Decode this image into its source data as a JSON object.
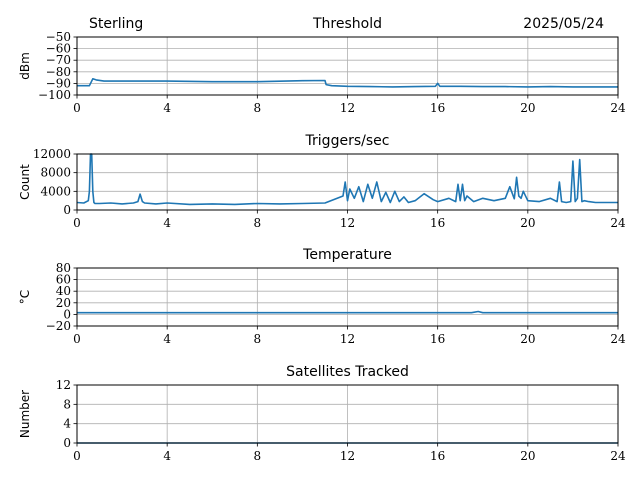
{
  "header": {
    "station": "Sterling",
    "date": "2025/05/24"
  },
  "colors": {
    "series": "#1f77b4",
    "grid": "#b0b0b0",
    "axis": "#000000"
  },
  "chart_data": [
    {
      "type": "line",
      "title": "Threshold",
      "xlabel": "",
      "ylabel": "dBm",
      "xlim": [
        0,
        24
      ],
      "ylim": [
        -100,
        -50
      ],
      "xticks": [
        0,
        4,
        8,
        12,
        16,
        20,
        24
      ],
      "yticks": [
        -100,
        -90,
        -80,
        -70,
        -60,
        -50
      ],
      "ytick_labels": [
        "−100",
        "−90",
        "−80",
        "−70",
        "−60",
        "−50"
      ],
      "grid": true,
      "series": [
        {
          "x": [
            0,
            0.55,
            0.7,
            0.85,
            1.2,
            2,
            3,
            4,
            6,
            8,
            10,
            11,
            11.05,
            11.3,
            12,
            13,
            14,
            15,
            15.9,
            16,
            16.1,
            17,
            18,
            19,
            20,
            21,
            22,
            23,
            24
          ],
          "y": [
            -92,
            -92,
            -86,
            -87,
            -88,
            -88,
            -88,
            -88,
            -88.5,
            -88.5,
            -87.7,
            -87.5,
            -91,
            -92,
            -92.5,
            -92.8,
            -93,
            -92.8,
            -92.5,
            -90,
            -92.5,
            -92.5,
            -92.8,
            -92.8,
            -93,
            -92.8,
            -93,
            -93,
            -93
          ]
        }
      ]
    },
    {
      "type": "line",
      "title": "Triggers/sec",
      "xlabel": "",
      "ylabel": "Count",
      "xlim": [
        0,
        24
      ],
      "ylim": [
        0,
        12000
      ],
      "xticks": [
        0,
        4,
        8,
        12,
        16,
        20,
        24
      ],
      "yticks": [
        0,
        4000,
        8000,
        12000
      ],
      "ytick_labels": [
        "0",
        "4000",
        "8000",
        "12000"
      ],
      "grid": true,
      "series": [
        {
          "x": [
            0,
            0.3,
            0.5,
            0.55,
            0.6,
            0.65,
            0.7,
            0.75,
            0.8,
            1.0,
            1.5,
            2.0,
            2.5,
            2.7,
            2.8,
            2.9,
            3.0,
            3.5,
            4.0,
            5.0,
            6.0,
            7.0,
            8.0,
            9.0,
            10.0,
            11.0,
            11.8,
            11.9,
            12.0,
            12.1,
            12.3,
            12.5,
            12.7,
            12.9,
            13.1,
            13.3,
            13.5,
            13.7,
            13.9,
            14.1,
            14.3,
            14.5,
            14.7,
            15.0,
            15.4,
            15.8,
            16.0,
            16.5,
            16.8,
            16.9,
            17.0,
            17.1,
            17.2,
            17.3,
            17.6,
            18.0,
            18.5,
            19.0,
            19.2,
            19.4,
            19.5,
            19.6,
            19.7,
            19.8,
            20.0,
            20.5,
            21.0,
            21.3,
            21.4,
            21.5,
            21.7,
            21.9,
            22.0,
            22.1,
            22.2,
            22.3,
            22.4,
            22.5,
            22.7,
            23.0,
            23.5,
            24.0
          ],
          "y": [
            1600,
            1500,
            2000,
            4000,
            12000,
            12000,
            4000,
            1600,
            1400,
            1400,
            1500,
            1300,
            1500,
            1800,
            3400,
            1800,
            1500,
            1300,
            1500,
            1200,
            1300,
            1200,
            1400,
            1300,
            1400,
            1500,
            3000,
            6000,
            2000,
            4500,
            2500,
            5000,
            1800,
            5500,
            2500,
            6000,
            1800,
            3800,
            1600,
            4000,
            1800,
            2800,
            1600,
            2000,
            3500,
            2200,
            1800,
            2500,
            1800,
            5500,
            2000,
            5500,
            2000,
            3000,
            1800,
            2500,
            2000,
            2500,
            5000,
            2400,
            7000,
            3000,
            2500,
            4000,
            2000,
            1800,
            2500,
            1800,
            6000,
            1800,
            1600,
            1800,
            10500,
            1800,
            2500,
            10800,
            1800,
            2000,
            1800,
            1600,
            1600,
            1600
          ]
        }
      ]
    },
    {
      "type": "line",
      "title": "Temperature",
      "xlabel": "",
      "ylabel": "°C",
      "xlim": [
        0,
        24
      ],
      "ylim": [
        -20,
        80
      ],
      "xticks": [
        0,
        4,
        8,
        12,
        16,
        20,
        24
      ],
      "yticks": [
        -20,
        0,
        20,
        40,
        60,
        80
      ],
      "ytick_labels": [
        "−20",
        "0",
        "20",
        "40",
        "60",
        "80"
      ],
      "grid": true,
      "series": [
        {
          "x": [
            0,
            4,
            8,
            12,
            16,
            17.5,
            17.8,
            18,
            20,
            24
          ],
          "y": [
            3,
            3,
            3,
            3,
            3,
            3,
            5,
            3,
            3,
            3
          ]
        }
      ]
    },
    {
      "type": "line",
      "title": "Satellites Tracked",
      "xlabel": "",
      "ylabel": "Number",
      "xlim": [
        0,
        24
      ],
      "ylim": [
        0,
        12
      ],
      "xticks": [
        0,
        4,
        8,
        12,
        16,
        20,
        24
      ],
      "yticks": [
        0,
        4,
        8,
        12
      ],
      "ytick_labels": [
        "0",
        "4",
        "8",
        "12"
      ],
      "grid": true,
      "series": [
        {
          "x": [
            0,
            24
          ],
          "y": [
            0,
            0
          ]
        }
      ]
    }
  ]
}
